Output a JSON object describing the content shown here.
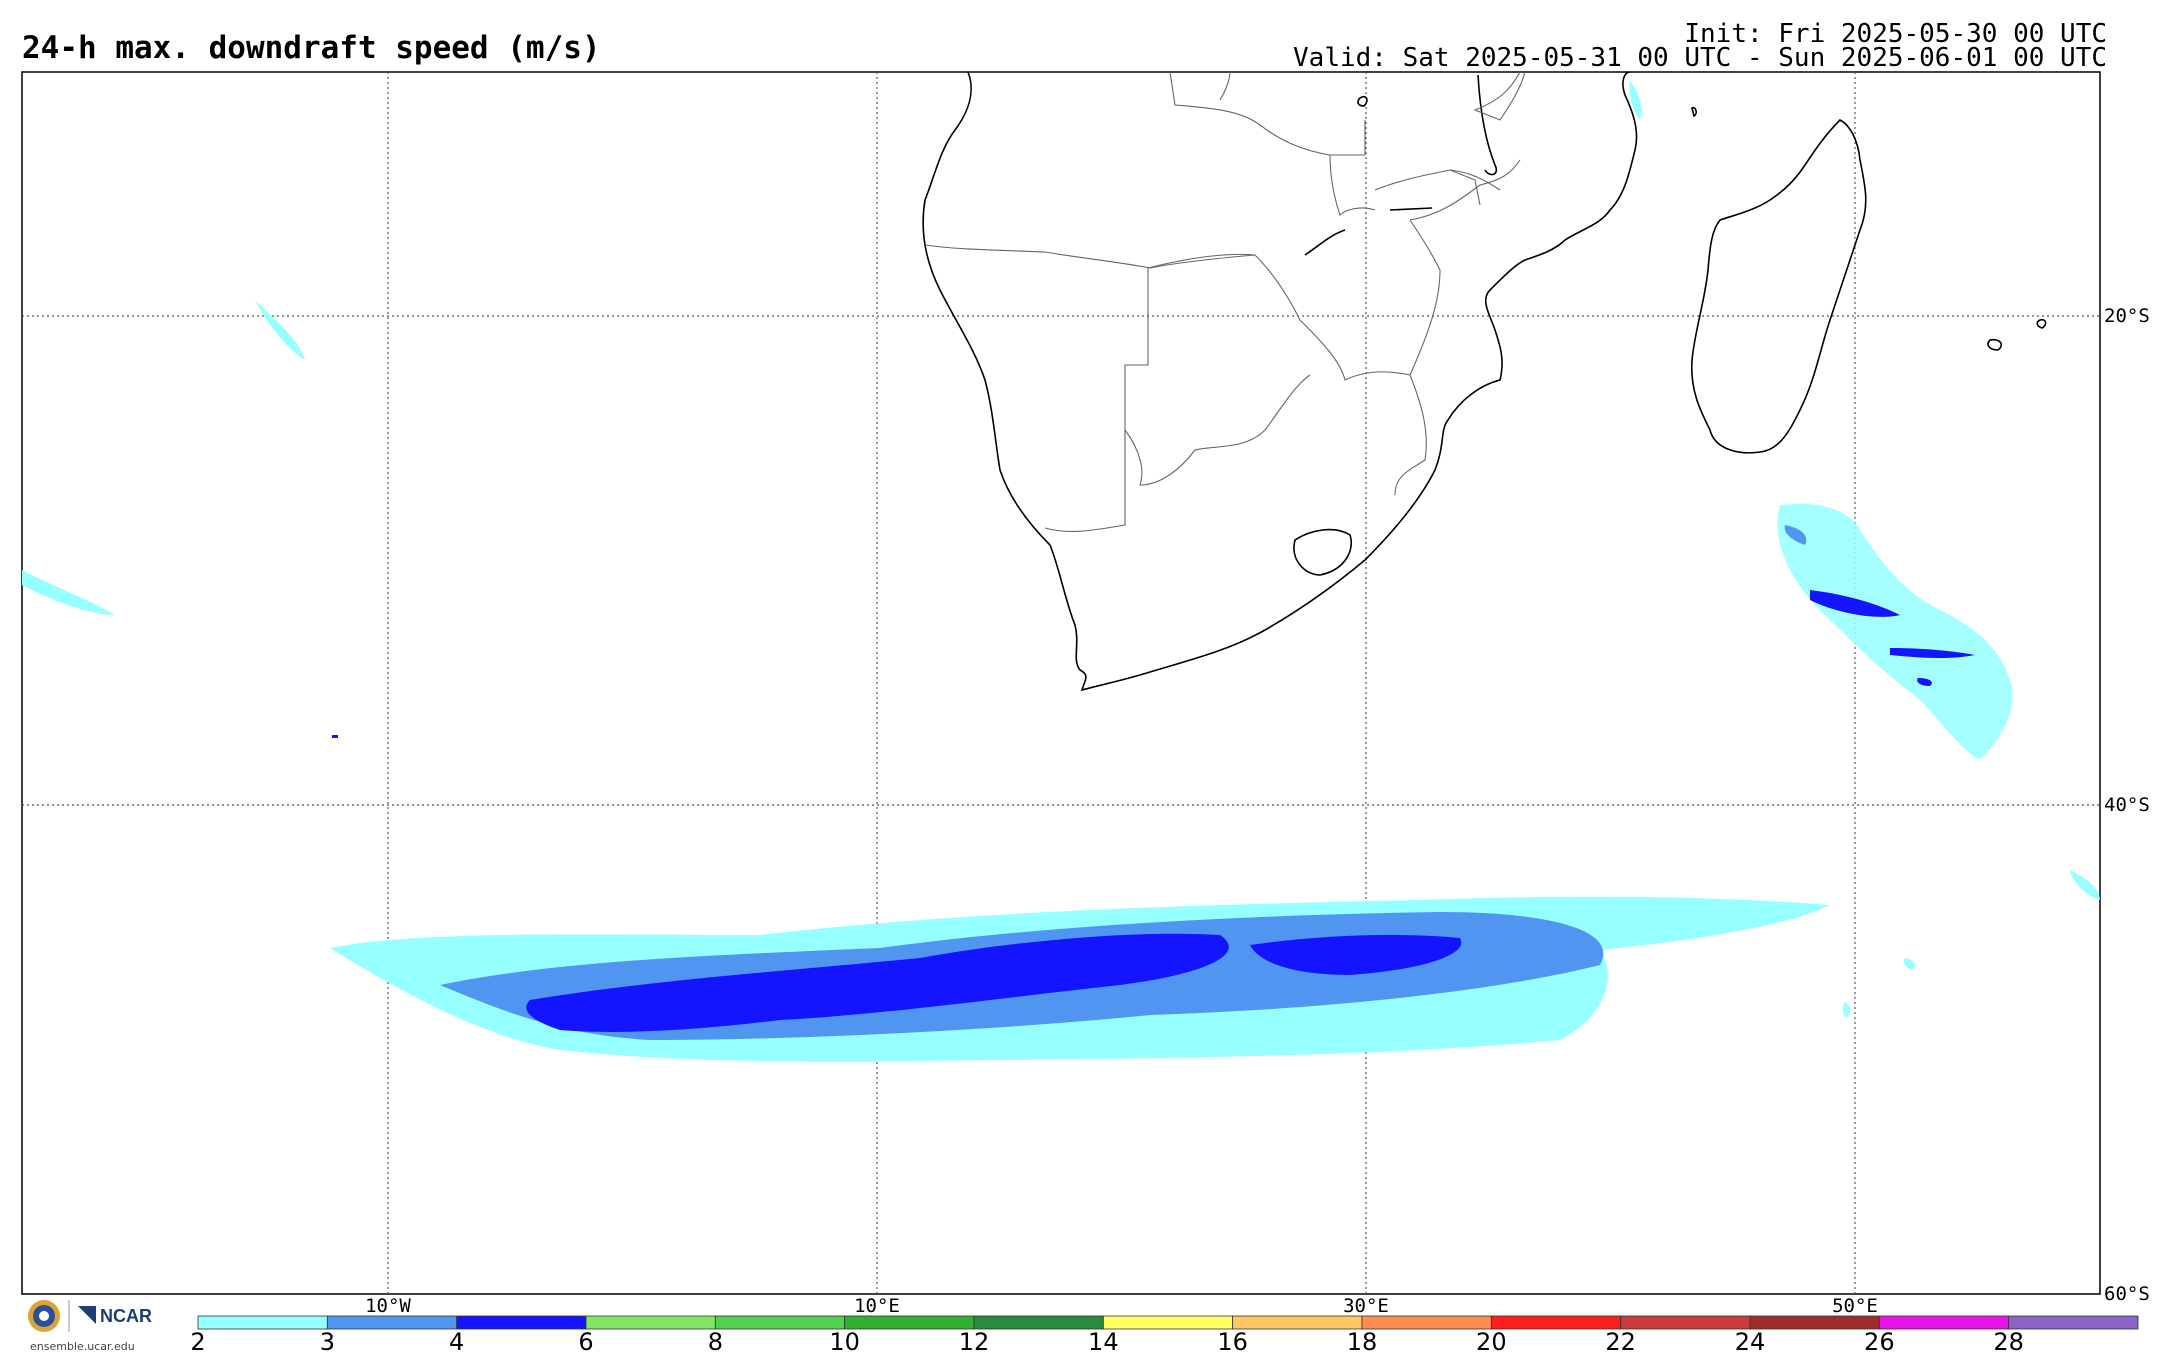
{
  "header": {
    "title": "24-h max. downdraft speed (m/s)",
    "init": "Init: Fri 2025-05-30 00 UTC",
    "valid": "Valid: Sat 2025-05-31 00 UTC - Sun 2025-06-01 00 UTC"
  },
  "map": {
    "lon_labels": [
      "10°W",
      "10°E",
      "30°E",
      "50°E"
    ],
    "lat_labels": [
      "20°S",
      "40°S",
      "60°S"
    ]
  },
  "colorbar": {
    "ticks": [
      "2",
      "3",
      "4",
      "6",
      "8",
      "10",
      "12",
      "14",
      "16",
      "18",
      "20",
      "22",
      "24",
      "26",
      "28"
    ],
    "colors": [
      "#96ffff",
      "#5096f0",
      "#1414ff",
      "#82e664",
      "#50d250",
      "#32af32",
      "#288c3c",
      "#ffff64",
      "#ffc864",
      "#ff8c50",
      "#ff1e1e",
      "#c83c3c",
      "#a02d2d",
      "#e614e6",
      "#8c64c8"
    ]
  },
  "footer": {
    "logo_org": "NCAR",
    "site": "ensemble.ucar.edu"
  }
}
